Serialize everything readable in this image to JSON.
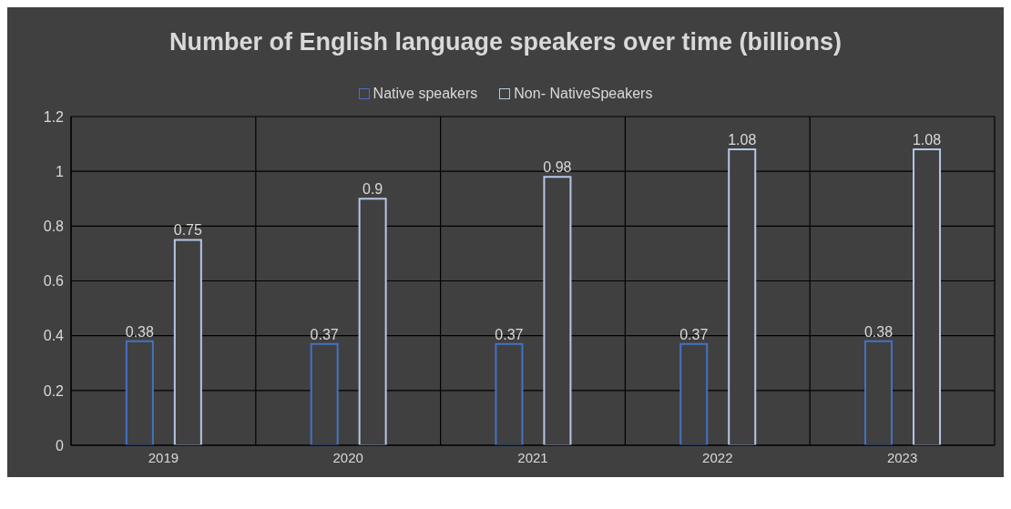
{
  "chart_data": {
    "type": "bar",
    "title": "Number  of English language speakers over time (billions)",
    "categories": [
      "2019",
      "2020",
      "2021",
      "2022",
      "2023"
    ],
    "series": [
      {
        "name": "Native speakers",
        "color": "#4472c4",
        "values": [
          0.38,
          0.37,
          0.37,
          0.37,
          0.38
        ]
      },
      {
        "name": "Non- NativeSpeakers",
        "color": "#b4c7e7",
        "values": [
          0.75,
          0.9,
          0.98,
          1.08,
          1.08
        ]
      }
    ],
    "ylim": [
      0,
      1.2
    ],
    "yticks": [
      0,
      0.2,
      0.4,
      0.6,
      0.8,
      1,
      1.2
    ],
    "grid": true,
    "legend": "top",
    "data_labels": true
  }
}
